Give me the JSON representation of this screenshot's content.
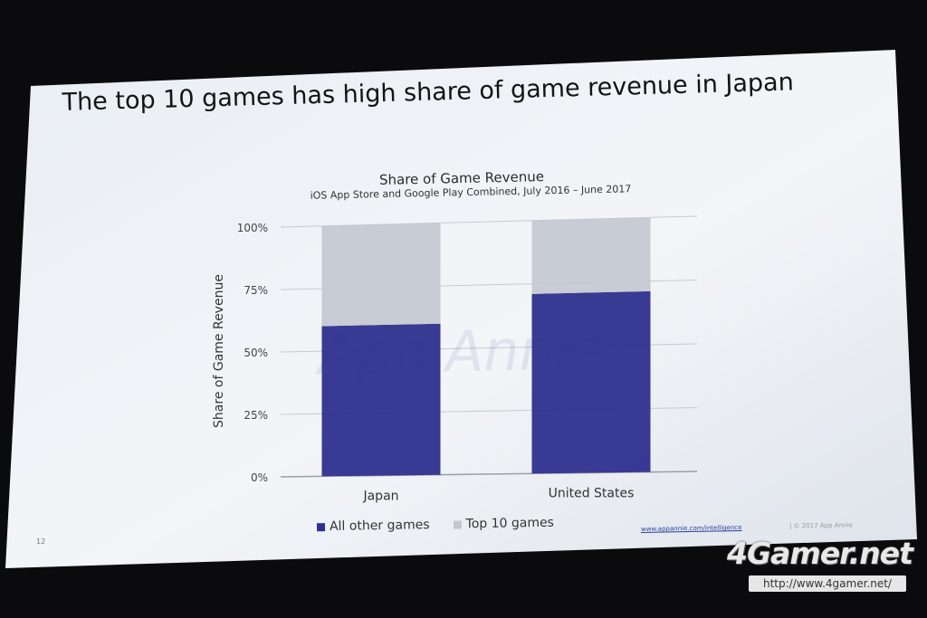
{
  "slide": {
    "title": "The top 10 games has high share of game revenue in Japan",
    "page_number": "12",
    "footer_link": "www.appannie.com/intelligence",
    "footer_copy": "| © 2017 App Annie"
  },
  "watermark": {
    "logo_text": "4Gamer.net",
    "url": "http://www.4gamer.net/"
  },
  "chart_data": {
    "type": "bar",
    "stacked": true,
    "title": "Share of Game Revenue",
    "subtitle": "iOS App Store and Google Play Combined, July 2016 – June 2017",
    "ylabel": "Share of Game Revenue",
    "xlabel": "",
    "categories": [
      "Japan",
      "United States"
    ],
    "series": [
      {
        "name": "All other games",
        "values": [
          60,
          71
        ],
        "color": "#2e2f8e"
      },
      {
        "name": "Top 10 games",
        "values": [
          40,
          29
        ],
        "color": "#c3c8cf"
      }
    ],
    "ylim": [
      0,
      100
    ],
    "yticks": [
      "0%",
      "25%",
      "50%",
      "75%",
      "100%"
    ],
    "grid": true,
    "legend": "bottom",
    "background_watermark": "App Annie"
  }
}
